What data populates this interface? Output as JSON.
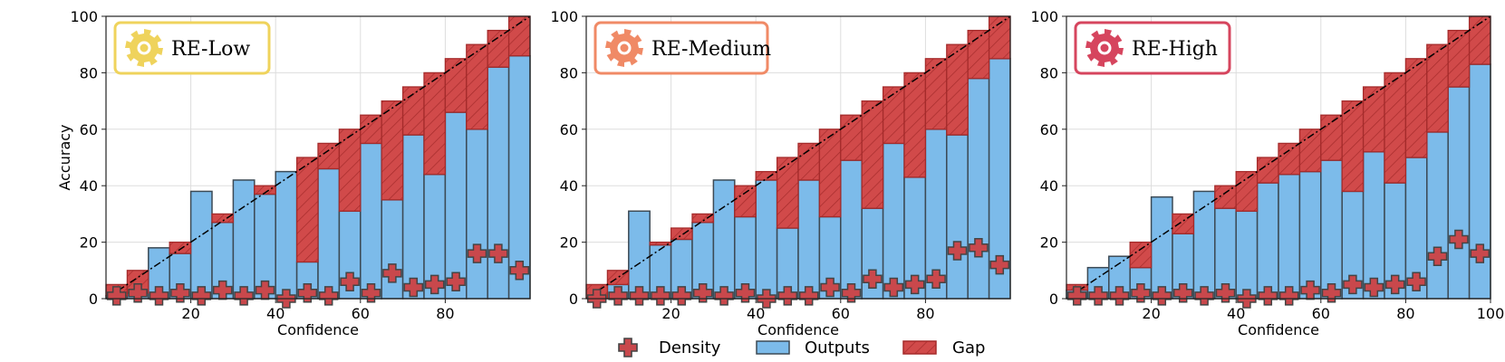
{
  "chart_data": [
    {
      "type": "bar",
      "panel": "RE-Low",
      "title": "",
      "badge_label": "RE-Low",
      "badge_color": "#efd35c",
      "xlabel": "Confidence",
      "ylabel": "Accuracy",
      "xlim": [
        0,
        100
      ],
      "ylim": [
        0,
        100
      ],
      "xticks": [
        20,
        40,
        60,
        80
      ],
      "yticks": [
        0,
        20,
        40,
        60,
        80,
        100
      ],
      "grid": true,
      "bin_centers": [
        2.5,
        7.5,
        12.5,
        17.5,
        22.5,
        27.5,
        32.5,
        37.5,
        42.5,
        47.5,
        52.5,
        57.5,
        62.5,
        67.5,
        72.5,
        77.5,
        82.5,
        87.5,
        92.5,
        97.5
      ],
      "series": [
        {
          "name": "Outputs",
          "values": [
            1,
            2,
            18,
            16,
            38,
            27,
            42,
            37,
            45,
            13,
            46,
            31,
            55,
            35,
            58,
            44,
            66,
            60,
            82,
            86
          ]
        },
        {
          "name": "Density",
          "values": [
            1,
            2,
            1,
            2,
            1,
            3,
            1,
            3,
            0,
            2,
            1,
            6,
            2,
            9,
            4,
            5,
            6,
            16,
            16,
            10
          ]
        }
      ],
      "gap_label": "Gap"
    },
    {
      "type": "bar",
      "panel": "RE-Medium",
      "title": "",
      "badge_label": "RE-Medium",
      "badge_color": "#f08a66",
      "xlabel": "Confidence",
      "ylabel": "",
      "xlim": [
        0,
        100
      ],
      "ylim": [
        0,
        100
      ],
      "xticks": [
        20,
        40,
        60,
        80
      ],
      "yticks": [
        0,
        20,
        40,
        60,
        80,
        100
      ],
      "grid": true,
      "bin_centers": [
        2.5,
        7.5,
        12.5,
        17.5,
        22.5,
        27.5,
        32.5,
        37.5,
        42.5,
        47.5,
        52.5,
        57.5,
        62.5,
        67.5,
        72.5,
        77.5,
        82.5,
        87.5,
        92.5,
        97.5
      ],
      "series": [
        {
          "name": "Outputs",
          "values": [
            0,
            5,
            31,
            19,
            21,
            27,
            42,
            29,
            42,
            25,
            42,
            29,
            49,
            32,
            55,
            43,
            60,
            58,
            78,
            85
          ]
        },
        {
          "name": "Density",
          "values": [
            0,
            1,
            1,
            1,
            1,
            2,
            1,
            2,
            0,
            1,
            1,
            4,
            2,
            7,
            4,
            5,
            7,
            17,
            18,
            12
          ]
        }
      ],
      "gap_label": "Gap"
    },
    {
      "type": "bar",
      "panel": "RE-High",
      "title": "",
      "badge_label": "RE-High",
      "badge_color": "#d6455e",
      "xlabel": "Confidence",
      "ylabel": "",
      "xlim": [
        0,
        100
      ],
      "ylim": [
        0,
        100
      ],
      "xticks": [
        20,
        40,
        60,
        80,
        100
      ],
      "yticks": [
        0,
        20,
        40,
        60,
        80,
        100
      ],
      "grid": true,
      "bin_centers": [
        2.5,
        7.5,
        12.5,
        17.5,
        22.5,
        27.5,
        32.5,
        37.5,
        42.5,
        47.5,
        52.5,
        57.5,
        62.5,
        67.5,
        72.5,
        77.5,
        82.5,
        87.5,
        92.5,
        97.5
      ],
      "series": [
        {
          "name": "Outputs",
          "values": [
            3,
            11,
            15,
            11,
            36,
            23,
            38,
            32,
            31,
            41,
            44,
            45,
            49,
            38,
            52,
            41,
            50,
            59,
            75,
            83
          ]
        },
        {
          "name": "Density",
          "values": [
            1,
            1,
            1,
            2,
            1,
            2,
            1,
            2,
            0,
            1,
            1,
            3,
            2,
            5,
            4,
            5,
            6,
            15,
            21,
            16
          ]
        }
      ],
      "gap_label": "Gap"
    }
  ],
  "legend": {
    "placement": "bottom-center",
    "items": [
      {
        "label": "Density",
        "marker": "plus-icon",
        "color": "#c9484c"
      },
      {
        "label": "Outputs",
        "marker": "box",
        "color": "#7cbbea"
      },
      {
        "label": "Gap",
        "marker": "hatched-box",
        "color": "#d45050"
      }
    ]
  },
  "colors": {
    "outputs_fill": "#7cbbea",
    "outputs_edge": "#3c4a55",
    "gap_fill": "#d14a4a",
    "gap_edge": "#a52b2b",
    "density_fill": "#c9484c",
    "density_edge": "#444444"
  }
}
